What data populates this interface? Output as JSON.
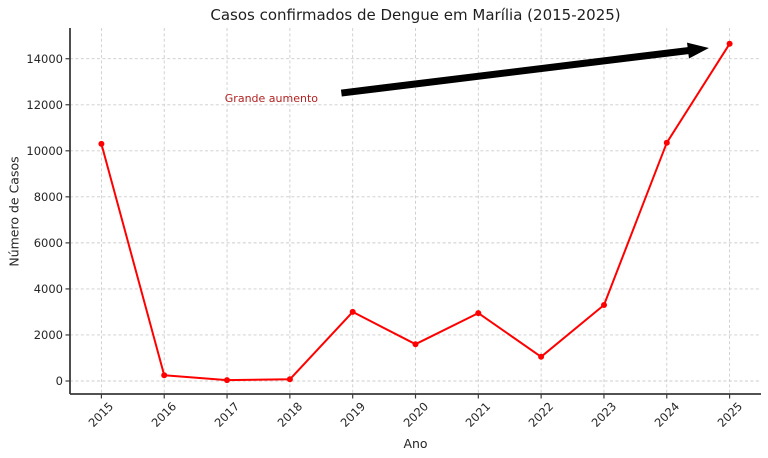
{
  "chart_data": {
    "type": "line",
    "title": "Casos confirmados de Dengue em Marília (2015-2025)",
    "xlabel": "Ano",
    "ylabel": "Número de Casos",
    "x": [
      2015,
      2016,
      2017,
      2018,
      2019,
      2020,
      2021,
      2022,
      2023,
      2024,
      2025
    ],
    "series": [
      {
        "color": "#ff0000",
        "marker": "circle",
        "values": [
          10300,
          250,
          40,
          75,
          3000,
          1600,
          2950,
          1050,
          3300,
          10350,
          14650
        ]
      }
    ],
    "xticks": [
      2015,
      2016,
      2017,
      2018,
      2019,
      2020,
      2021,
      2022,
      2023,
      2024,
      2025
    ],
    "yticks": [
      0,
      2000,
      4000,
      6000,
      8000,
      10000,
      12000,
      14000
    ],
    "xlim": [
      2014.5,
      2025.5
    ],
    "ylim": [
      -565,
      15335
    ],
    "grid": true,
    "grid_style": "dashed",
    "legend": "none",
    "annotation": {
      "text": "Grande aumento",
      "color": "#b22222",
      "arrow_color": "#000000",
      "text_pos": {
        "x": 2018.45,
        "y": 12250
      },
      "arrow_from": {
        "x": 2018.82,
        "y": 12510
      },
      "arrow_to": {
        "x": 2024.67,
        "y": 14465
      }
    }
  },
  "colors": {
    "background": "#ffffff",
    "text": "#262626",
    "spine": "#3a3a3a",
    "grid": "#cccccc",
    "line": "#ff0000",
    "annotation_text": "#b22222",
    "annotation_arrow": "#000000"
  }
}
